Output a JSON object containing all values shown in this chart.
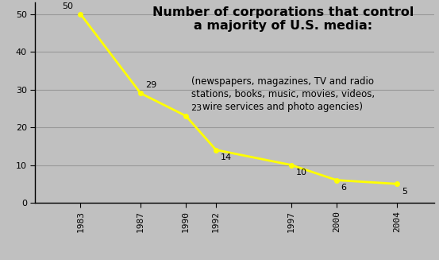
{
  "years": [
    1983,
    1987,
    1990,
    1992,
    1997,
    2000,
    2004
  ],
  "values": [
    50,
    29,
    23,
    14,
    10,
    6,
    5
  ],
  "line_color": "#ffff00",
  "line_width": 2.0,
  "marker": "o",
  "marker_size": 4,
  "background_color": "#c0c0c0",
  "title_line1": "Number of corporations that control",
  "title_line2": "a majority of U.S. media:",
  "subtitle": "(newspapers, magazines, TV and radio\nstations, books, music, movies, videos,\nwire services and photo agencies)",
  "title_fontsize": 11.5,
  "subtitle_fontsize": 8.5,
  "label_fontsize": 8,
  "tick_fontsize": 8,
  "ylim": [
    0,
    53
  ],
  "yticks": [
    0,
    10,
    20,
    30,
    40,
    50
  ],
  "grid_color": "#999999",
  "spine_color": "#000000",
  "text_color": "#000000",
  "xlim_left": 1980,
  "xlim_right": 2006.5
}
